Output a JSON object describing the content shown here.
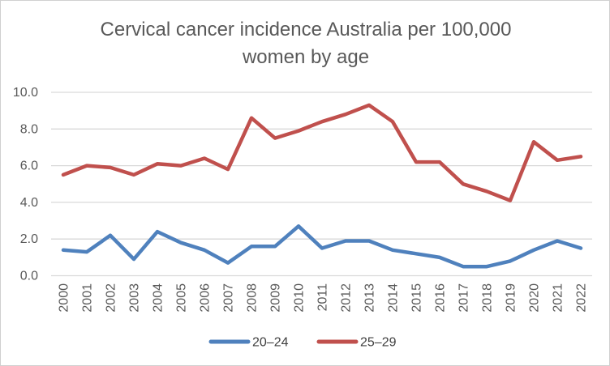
{
  "frame": {
    "background_color": "#FFFFFF",
    "border_color": "#D0D0D0",
    "grid_color": "#D9D9D9",
    "text_color": "#595959",
    "legend_text_color": "#404040"
  },
  "chart_data": {
    "type": "line",
    "title": "Cervical cancer incidence Australia per 100,000 women by age",
    "title_lines": [
      "Cervical cancer incidence Australia per 100,000",
      "women by age"
    ],
    "xlabel": "",
    "ylabel": "",
    "categories": [
      "2000",
      "2001",
      "2002",
      "2003",
      "2004",
      "2005",
      "2006",
      "2007",
      "2008",
      "2009",
      "2010",
      "2011",
      "2012",
      "2013",
      "2014",
      "2015",
      "2016",
      "2017",
      "2018",
      "2019",
      "2020",
      "2021",
      "2022"
    ],
    "series": [
      {
        "name": "20–24",
        "color": "#4F81BD",
        "values": [
          1.4,
          1.3,
          2.2,
          0.9,
          2.4,
          1.8,
          1.4,
          0.7,
          1.6,
          1.6,
          2.7,
          1.5,
          1.9,
          1.9,
          1.4,
          1.2,
          1.0,
          0.5,
          0.5,
          0.8,
          1.4,
          1.9,
          1.5
        ]
      },
      {
        "name": "25–29",
        "color": "#C0504D",
        "values": [
          5.5,
          6.0,
          5.9,
          5.5,
          6.1,
          6.0,
          6.4,
          5.8,
          8.6,
          7.5,
          7.9,
          8.4,
          8.8,
          9.3,
          8.4,
          6.2,
          6.2,
          5.0,
          4.6,
          4.1,
          7.3,
          6.3,
          6.5
        ]
      }
    ],
    "ylim": [
      0,
      10
    ],
    "ytick_step": 2,
    "ytick_labels": [
      "0.0",
      "2.0",
      "4.0",
      "6.0",
      "8.0",
      "10.0"
    ],
    "grid": true,
    "legend_position": "bottom"
  }
}
